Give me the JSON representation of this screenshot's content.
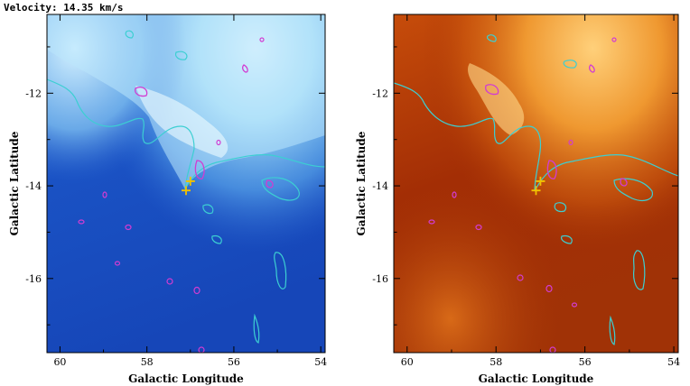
{
  "header": {
    "velocity_label": "Velocity: 14.35 km/s"
  },
  "chart_data": [
    {
      "type": "heatmap",
      "title": "",
      "colormap": "blue",
      "xlabel": "Galactic Longitude",
      "ylabel": "Galactic Latitude",
      "xlim": [
        60.3,
        53.9
      ],
      "ylim": [
        -17.6,
        -10.3
      ],
      "xticks": [
        60,
        58,
        56,
        54
      ],
      "yticks": [
        -12,
        -14,
        -16
      ],
      "contour_colors": {
        "cyan": "#3ccfd2",
        "magenta": "#d23cd2"
      },
      "markers": [
        {
          "shape": "plus",
          "color": "#f2c200",
          "x": 57.0,
          "y": -13.9
        },
        {
          "shape": "plus",
          "color": "#f2c200",
          "x": 57.1,
          "y": -14.1
        }
      ]
    },
    {
      "type": "heatmap",
      "title": "",
      "colormap": "orange",
      "xlabel": "Galactic Longitude",
      "ylabel": "Galactic Latitude",
      "xlim": [
        60.3,
        53.9
      ],
      "ylim": [
        -17.6,
        -10.3
      ],
      "xticks": [
        60,
        58,
        56,
        54
      ],
      "yticks": [
        -12,
        -14,
        -16
      ],
      "contour_colors": {
        "cyan": "#3ccfd2",
        "magenta": "#d23cd2"
      },
      "markers": [
        {
          "shape": "plus",
          "color": "#f2c200",
          "x": 57.0,
          "y": -13.9
        },
        {
          "shape": "plus",
          "color": "#f2c200",
          "x": 57.1,
          "y": -14.1
        }
      ]
    }
  ]
}
